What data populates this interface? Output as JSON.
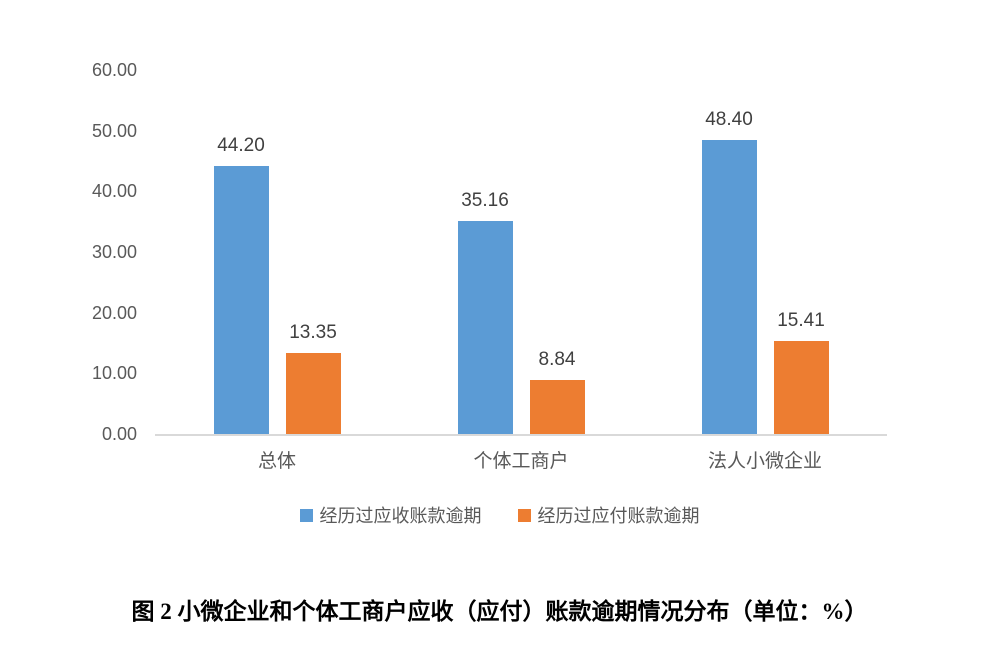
{
  "figure": {
    "caption": "图 2 小微企业和个体工商户应收（应付）账款逾期情况分布（单位：%）"
  },
  "chart_data": {
    "type": "bar",
    "categories": [
      "总体",
      "个体工商户",
      "法人小微企业"
    ],
    "series": [
      {
        "name": "经历过应收账款逾期",
        "color": "#5B9BD5",
        "values": [
          44.2,
          35.16,
          48.4
        ]
      },
      {
        "name": "经历过应付账款逾期",
        "color": "#ED7D31",
        "values": [
          13.35,
          8.84,
          15.41
        ]
      }
    ],
    "value_labels": [
      [
        "44.20",
        "35.16",
        "48.40"
      ],
      [
        "13.35",
        "8.84",
        "15.41"
      ]
    ],
    "ylim": [
      0,
      60
    ],
    "ytick_step": 10,
    "ytick_labels": [
      "0.00",
      "10.00",
      "20.00",
      "30.00",
      "40.00",
      "50.00",
      "60.00"
    ],
    "grid": false,
    "legend_position": "bottom",
    "title": "",
    "xlabel": "",
    "ylabel": "",
    "axis_color": "#D9D9D9",
    "tick_color": "#595959",
    "data_label_color": "#404040"
  }
}
